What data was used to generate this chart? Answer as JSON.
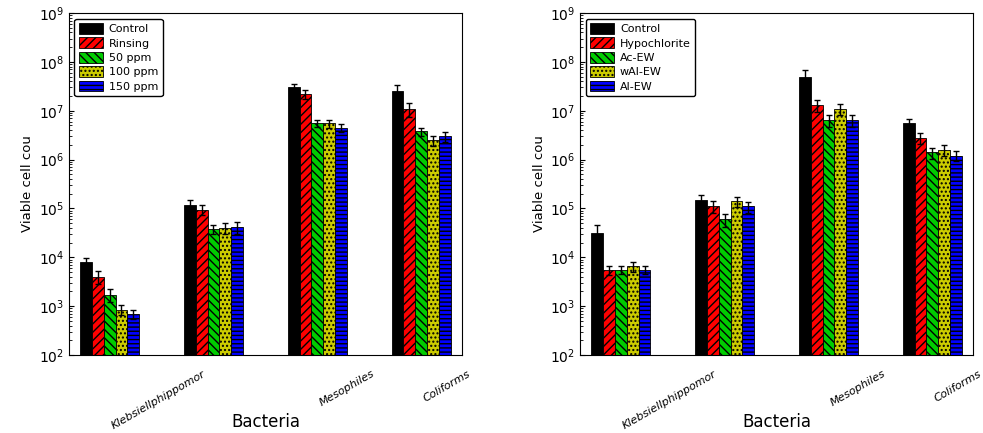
{
  "left": {
    "title": "Bacteria",
    "ylabel": "Viable cell couₙt",
    "legend_labels": [
      "Control",
      "Rinsing",
      "50 ppm",
      "100 ppm",
      "150 ppm"
    ],
    "colors": [
      "#000000",
      "#ff0000",
      "#00cc00",
      "#cccc00",
      "#0000ff"
    ],
    "hatches": [
      "",
      "////",
      "\\\\\\\\",
      "....",
      "----"
    ],
    "values": [
      [
        8000,
        4000,
        1700,
        850,
        700
      ],
      [
        120000,
        95000,
        38000,
        40000,
        42000
      ],
      [
        30000000,
        22000000,
        5500000,
        5500000,
        4500000
      ],
      [
        25000000,
        11000000,
        3800000,
        2500000,
        3000000
      ]
    ],
    "errors": [
      [
        1500,
        1200,
        500,
        200,
        150
      ],
      [
        30000,
        22000,
        8000,
        10000,
        12000
      ],
      [
        6000000,
        5000000,
        900000,
        1000000,
        800000
      ],
      [
        8000000,
        3500000,
        700000,
        600000,
        700000
      ]
    ],
    "group_labels": [
      "Klebsiellphippomor",
      "Mesophiles",
      "Coliforms"
    ],
    "group_indices": [
      0,
      2,
      3
    ],
    "ylim": [
      100.0,
      1000000000.0
    ],
    "n_groups": 4
  },
  "right": {
    "title": "Bacteria",
    "ylabel": "Viable cell couₙt",
    "legend_labels": [
      "Control",
      "Hypochlorite",
      "Ac-EW",
      "wAl-EW",
      "Al-EW"
    ],
    "colors": [
      "#000000",
      "#ff0000",
      "#00cc00",
      "#cccc00",
      "#0000ff"
    ],
    "hatches": [
      "",
      "////",
      "\\\\\\\\",
      "....",
      "----"
    ],
    "values": [
      [
        32000,
        5500,
        5500,
        6500,
        5500
      ],
      [
        150000,
        110000,
        60000,
        140000,
        110000
      ],
      [
        50000000,
        13000000,
        6500000,
        11000000,
        6500000
      ],
      [
        5500000,
        2800000,
        1400000,
        1600000,
        1200000
      ]
    ],
    "errors": [
      [
        14000,
        1200,
        1000,
        1500,
        1000
      ],
      [
        40000,
        30000,
        18000,
        35000,
        28000
      ],
      [
        18000000,
        3500000,
        1800000,
        3000000,
        1800000
      ],
      [
        1200000,
        700000,
        350000,
        400000,
        280000
      ]
    ],
    "group_labels": [
      "Klebsiellphippomor",
      "Mesophiles",
      "Coliforms"
    ],
    "group_indices": [
      0,
      2,
      3
    ],
    "ylim": [
      100.0,
      1000000000.0
    ],
    "n_groups": 4
  }
}
